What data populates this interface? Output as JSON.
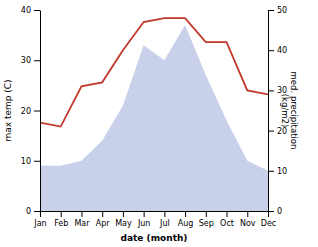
{
  "chart_data": {
    "type": "area",
    "xlabel": "date (month)",
    "ylabel": "max temp (C)",
    "y2label": "med. precipitation\n(kg/m2)",
    "categories": [
      "Jan",
      "Feb",
      "Mar",
      "Apr",
      "May",
      "Jun",
      "Jul",
      "Aug",
      "Sep",
      "Oct",
      "Nov",
      "Dec"
    ],
    "series": [
      {
        "type": "area",
        "color": "#c8d0ea",
        "values": [
          9,
          9,
          10,
          14,
          21,
          33,
          30,
          37,
          27,
          18,
          10,
          8
        ]
      },
      {
        "type": "line",
        "axis": "y2",
        "color": "#c0392b",
        "values": [
          22,
          21,
          31,
          32,
          40,
          47,
          48,
          48,
          42,
          42,
          30,
          29
        ]
      }
    ],
    "ylim": [
      0,
      40
    ],
    "yticks": [
      0,
      10,
      20,
      30,
      40
    ],
    "y2lim": [
      0,
      50
    ],
    "y2ticks": [
      0,
      10,
      20,
      30,
      40,
      50
    ]
  }
}
